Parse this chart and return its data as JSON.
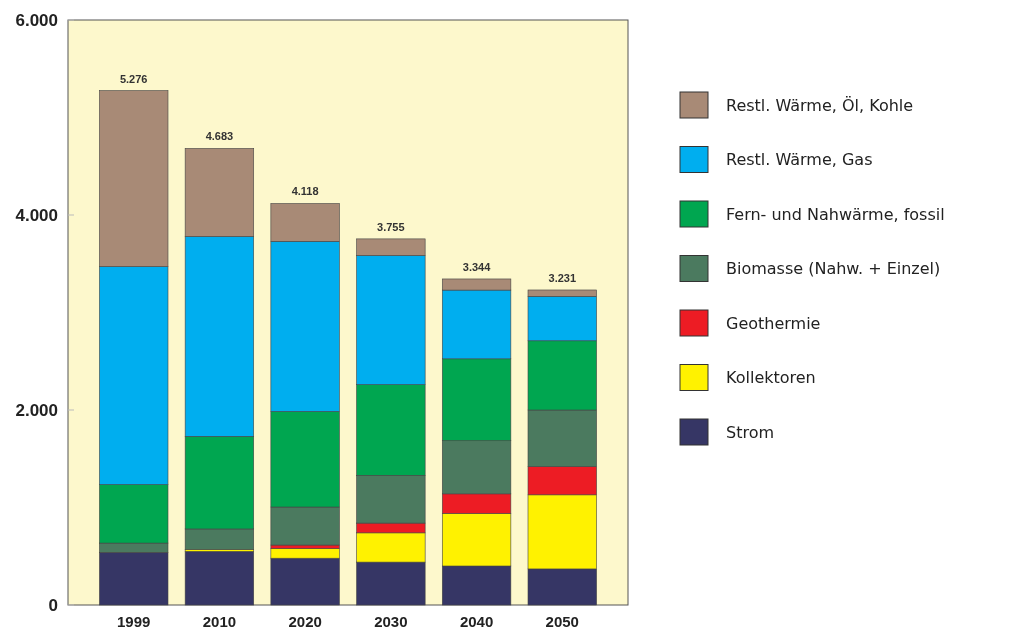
{
  "chart_data": {
    "type": "bar",
    "stacked": true,
    "categories": [
      "1999",
      "2010",
      "2020",
      "2030",
      "2040",
      "2050"
    ],
    "series": [
      {
        "name": "Strom",
        "color": "#363665",
        "values": [
          540,
          550,
          480,
          440,
          400,
          370
        ]
      },
      {
        "name": "Kollektoren",
        "color": "#fff200",
        "values": [
          0,
          20,
          100,
          300,
          540,
          760
        ]
      },
      {
        "name": "Geothermie",
        "color": "#ed1c24",
        "values": [
          0,
          0,
          35,
          100,
          200,
          290
        ]
      },
      {
        "name": "Biomasse (Nahw. + Einzel)",
        "color": "#4b7a5f",
        "values": [
          95,
          210,
          390,
          490,
          545,
          580
        ]
      },
      {
        "name": "Fern- und Nahwärme, fossil",
        "color": "#00a650",
        "values": [
          600,
          950,
          980,
          930,
          840,
          710
        ]
      },
      {
        "name": "Restl. Wärme, Gas",
        "color": "#00aeef",
        "values": [
          2236,
          2050,
          1745,
          1325,
          705,
          456
        ]
      },
      {
        "name": "Restl. Wärme, Öl, Kohle",
        "color": "#a88a76",
        "values": [
          1805,
          903,
          388,
          170,
          114,
          65
        ]
      }
    ],
    "totals": [
      "5.276",
      "4.683",
      "4.118",
      "3.755",
      "3.344",
      "3.231"
    ],
    "ylim": [
      0,
      6000
    ],
    "yticks": [
      {
        "value": 0,
        "label": "0"
      },
      {
        "value": 2000,
        "label": "2.000"
      },
      {
        "value": 4000,
        "label": "4.000"
      },
      {
        "value": 6000,
        "label": "6.000"
      }
    ],
    "legend": "right",
    "grid": false
  }
}
